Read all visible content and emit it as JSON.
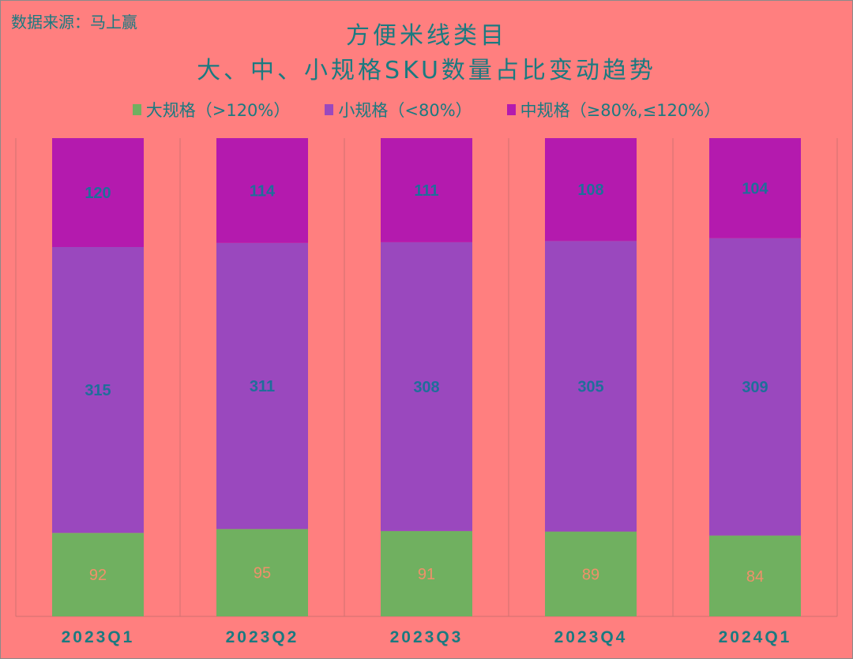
{
  "source_note": "数据来源：马上赢",
  "chart_data": {
    "type": "bar",
    "stacked": true,
    "normalized": "100%",
    "title": "方便米线类目",
    "subtitle": "大、中、小规格SKU数量占比变动趋势",
    "categories": [
      "2023Q1",
      "2023Q2",
      "2023Q3",
      "2023Q4",
      "2024Q1"
    ],
    "series": [
      {
        "name": "大规格（>120%）",
        "values": [
          92,
          95,
          91,
          89,
          84
        ],
        "color": "#70B060",
        "label_color": "#F0906A"
      },
      {
        "name": "小规格（<80%）",
        "values": [
          315,
          311,
          308,
          305,
          309
        ],
        "color": "#9A48BE",
        "label_color": "#1F6E9A"
      },
      {
        "name": "中规格（≥80%,≤120%）",
        "values": [
          120,
          114,
          111,
          108,
          104
        ],
        "color": "#B41AAE",
        "label_color": "#1F6E9A"
      }
    ],
    "legend_placement": "top",
    "grid": "vertical category separators",
    "text_color": "#1A7A80",
    "background": "#FF7F7F"
  }
}
